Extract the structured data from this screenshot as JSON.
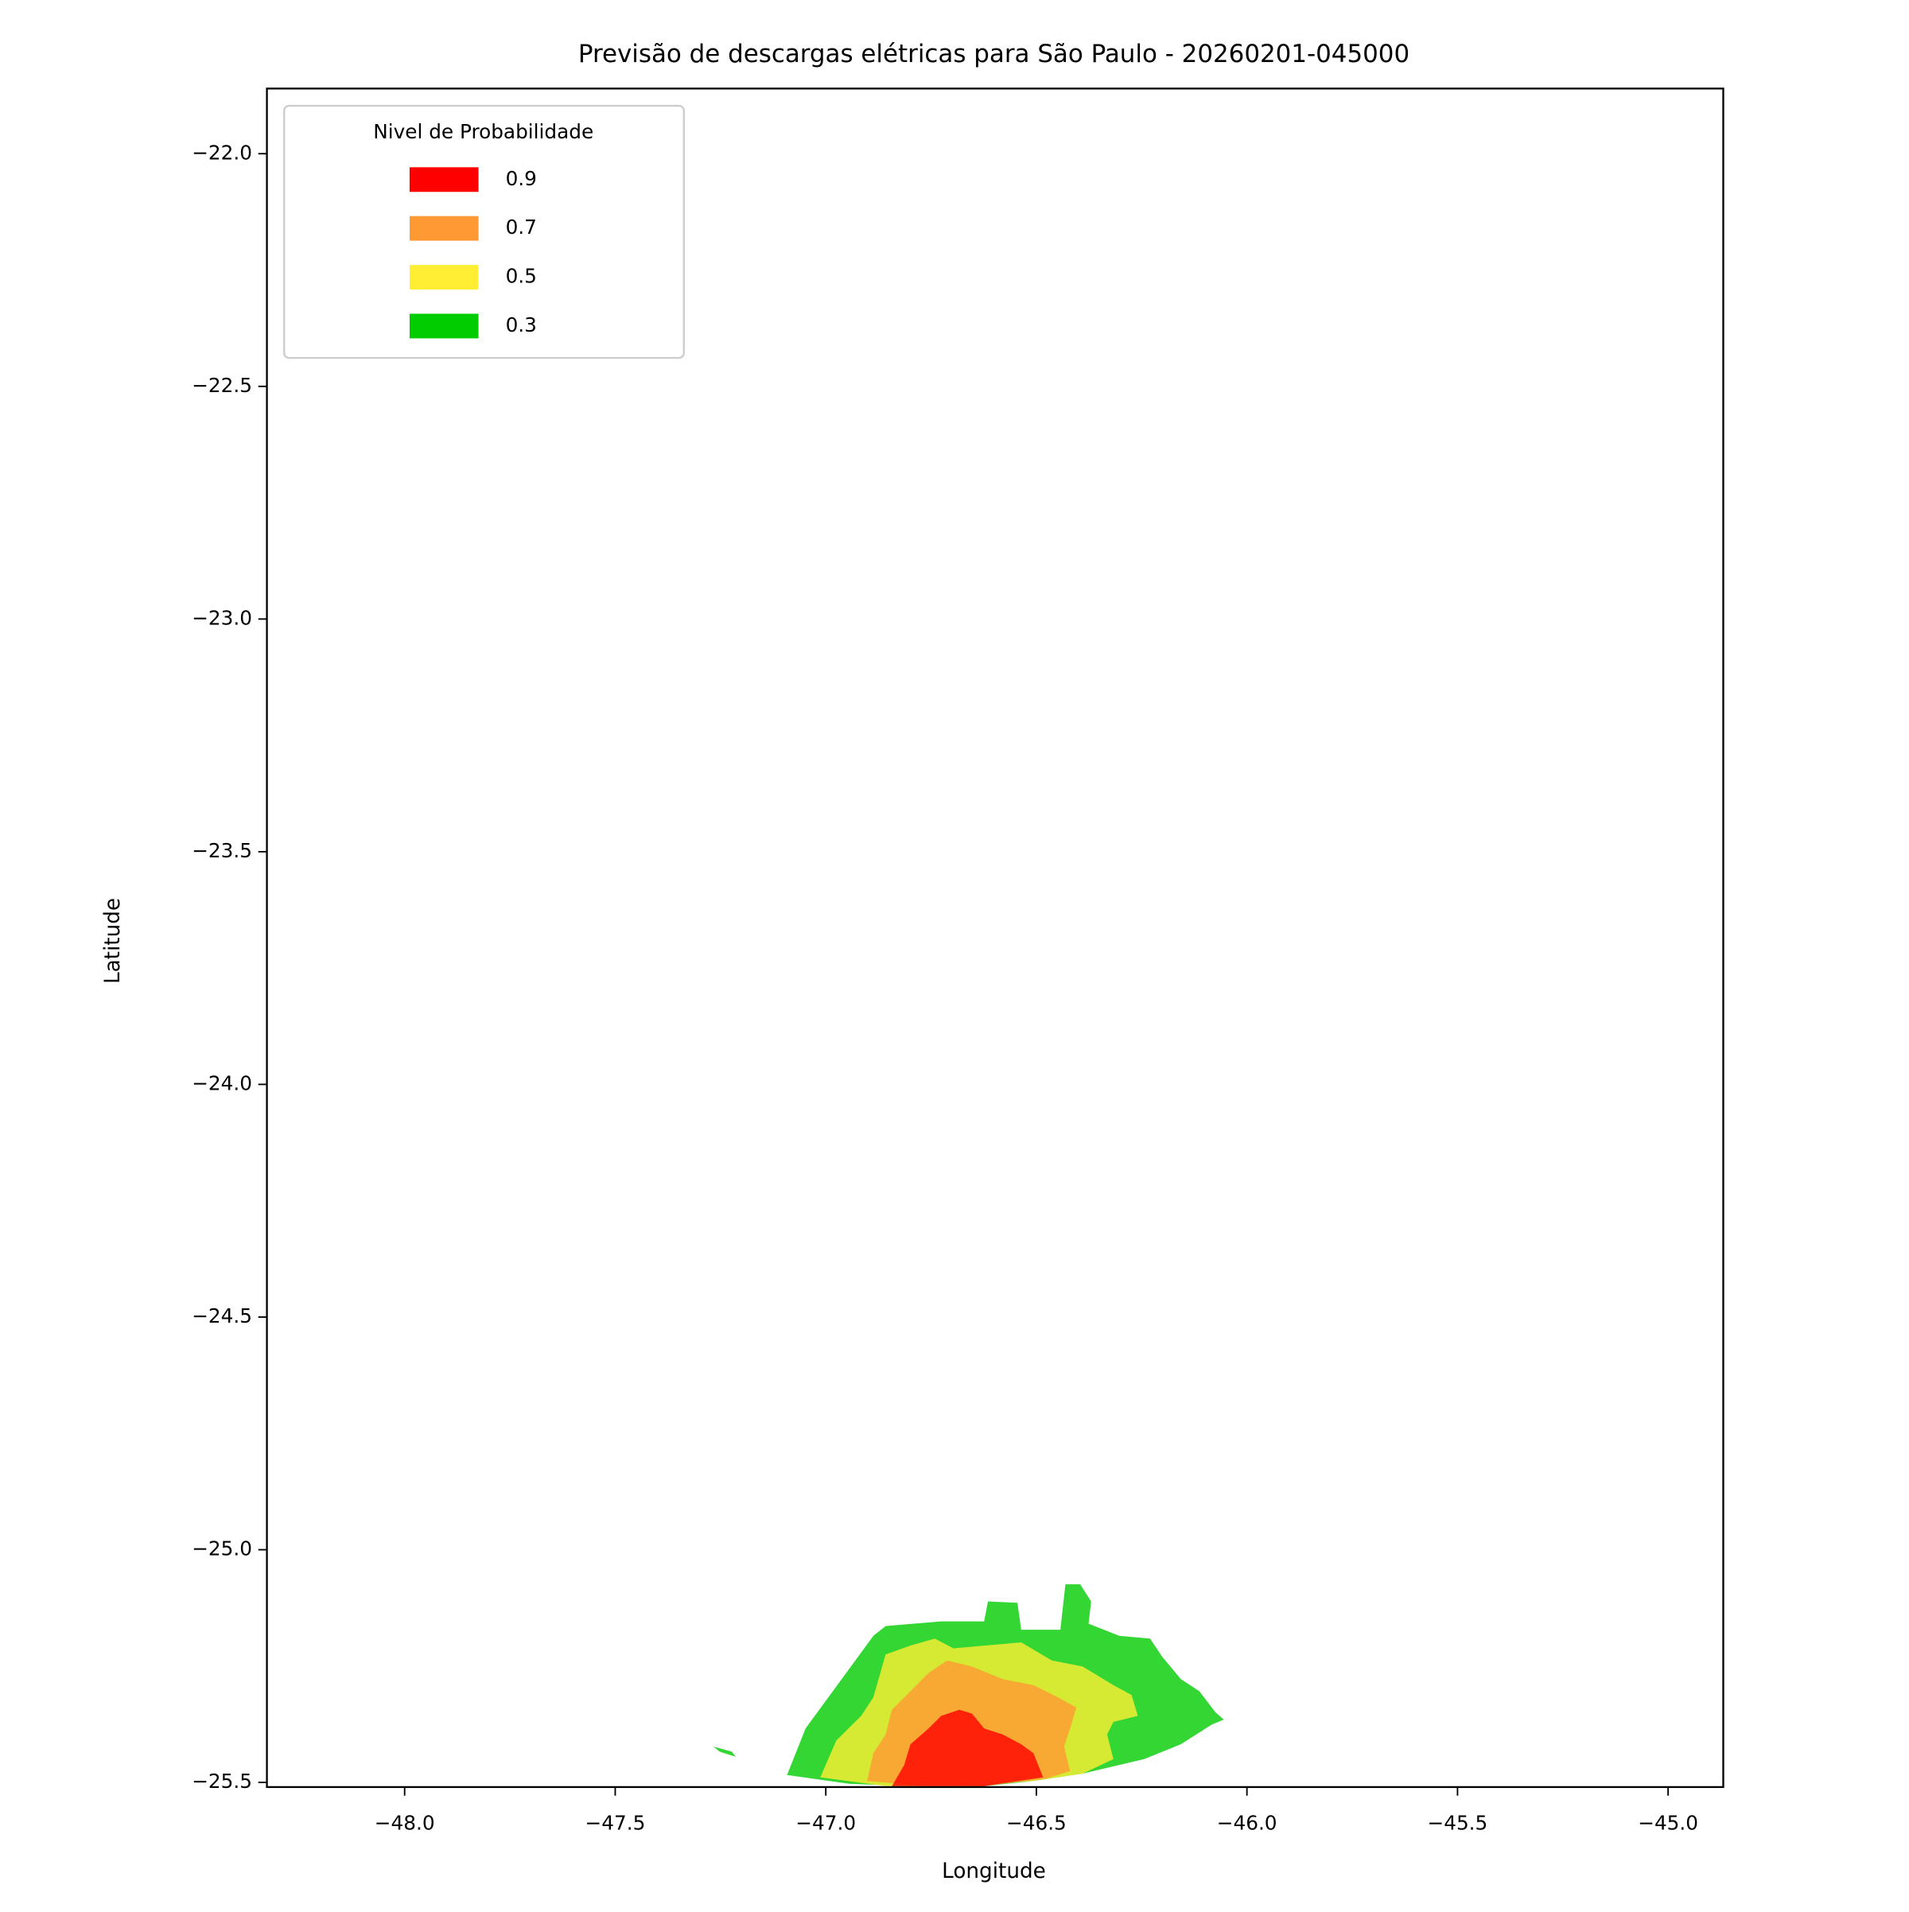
{
  "chart_data": {
    "type": "contour",
    "title": "Previsão de descargas elétricas para São Paulo - 20260201-045000",
    "x_label": "Longitude",
    "y_label": "Latitude",
    "legend_title": "Nivel de Probabilidade",
    "legend_position": "upper left",
    "fill_opacity": 0.8,
    "xlim": [
      -48.327,
      -44.869
    ],
    "ylim": [
      -25.51,
      -21.86
    ],
    "xticks": [
      {
        "value": -48.0,
        "label": "−48.0"
      },
      {
        "value": -47.5,
        "label": "−47.5"
      },
      {
        "value": -47.0,
        "label": "−47.0"
      },
      {
        "value": -46.5,
        "label": "−46.5"
      },
      {
        "value": -46.0,
        "label": "−46.0"
      },
      {
        "value": -45.5,
        "label": "−45.5"
      },
      {
        "value": -45.0,
        "label": "−45.0"
      }
    ],
    "yticks": [
      {
        "value": -22.0,
        "label": "−22.0"
      },
      {
        "value": -22.5,
        "label": "−22.5"
      },
      {
        "value": -23.0,
        "label": "−23.0"
      },
      {
        "value": -23.5,
        "label": "−23.5"
      },
      {
        "value": -24.0,
        "label": "−24.0"
      },
      {
        "value": -24.5,
        "label": "−24.5"
      },
      {
        "value": -25.0,
        "label": "−25.0"
      },
      {
        "value": -25.5,
        "label": "−25.5"
      }
    ],
    "series": [
      {
        "name": "0.9",
        "color": "#ff0000",
        "lon": [
          -46.843,
          -46.814,
          -46.799,
          -46.756,
          -46.726,
          -46.683,
          -46.653,
          -46.624,
          -46.58,
          -46.536,
          -46.507,
          -46.484,
          -46.624
        ],
        "lat": [
          -25.508,
          -25.463,
          -25.418,
          -25.384,
          -25.357,
          -25.344,
          -25.352,
          -25.384,
          -25.397,
          -25.418,
          -25.437,
          -25.489,
          -25.508
        ]
      },
      {
        "name": "0.7",
        "color": "#ff9933",
        "lon": [
          -46.902,
          -46.887,
          -46.858,
          -46.843,
          -46.799,
          -46.756,
          -46.712,
          -46.653,
          -46.58,
          -46.507,
          -46.449,
          -46.405,
          -46.42,
          -46.434,
          -46.42,
          -46.478,
          -46.624,
          -46.756
        ],
        "lat": [
          -25.497,
          -25.437,
          -25.397,
          -25.344,
          -25.304,
          -25.265,
          -25.238,
          -25.251,
          -25.278,
          -25.291,
          -25.317,
          -25.339,
          -25.384,
          -25.423,
          -25.476,
          -25.492,
          -25.508,
          -25.508
        ]
      },
      {
        "name": "0.5",
        "color": "#ffee33",
        "lon": [
          -47.013,
          -46.975,
          -46.916,
          -46.887,
          -46.858,
          -46.799,
          -46.741,
          -46.697,
          -46.536,
          -46.463,
          -46.39,
          -46.317,
          -46.274,
          -46.259,
          -46.317,
          -46.332,
          -46.317,
          -46.39,
          -46.507,
          -46.683,
          -46.858
        ],
        "lat": [
          -25.489,
          -25.41,
          -25.357,
          -25.317,
          -25.225,
          -25.206,
          -25.191,
          -25.212,
          -25.199,
          -25.238,
          -25.251,
          -25.291,
          -25.312,
          -25.357,
          -25.37,
          -25.397,
          -25.45,
          -25.481,
          -25.497,
          -25.508,
          -25.508
        ]
      },
      {
        "name": "0.3",
        "color": "#00cc00",
        "lon": [
          -47.092,
          -47.048,
          -46.887,
          -46.858,
          -46.726,
          -46.624,
          -46.615,
          -46.545,
          -46.536,
          -46.443,
          -46.431,
          -46.396,
          -46.37,
          -46.376,
          -46.303,
          -46.23,
          -46.201,
          -46.157,
          -46.113,
          -46.075,
          -46.055,
          -46.084,
          -46.157,
          -46.244,
          -46.39,
          -46.507,
          -46.624,
          -46.799,
          -46.945,
          null,
          -47.267,
          -47.223,
          -47.214,
          -47.252
        ],
        "lat": [
          -25.484,
          -25.384,
          -25.185,
          -25.164,
          -25.154,
          -25.154,
          -25.111,
          -25.114,
          -25.172,
          -25.172,
          -25.074,
          -25.074,
          -25.111,
          -25.159,
          -25.185,
          -25.191,
          -25.23,
          -25.278,
          -25.304,
          -25.349,
          -25.365,
          -25.376,
          -25.418,
          -25.45,
          -25.481,
          -25.497,
          -25.508,
          -25.508,
          -25.503,
          null,
          -25.423,
          -25.434,
          -25.445,
          -25.434
        ]
      }
    ]
  }
}
